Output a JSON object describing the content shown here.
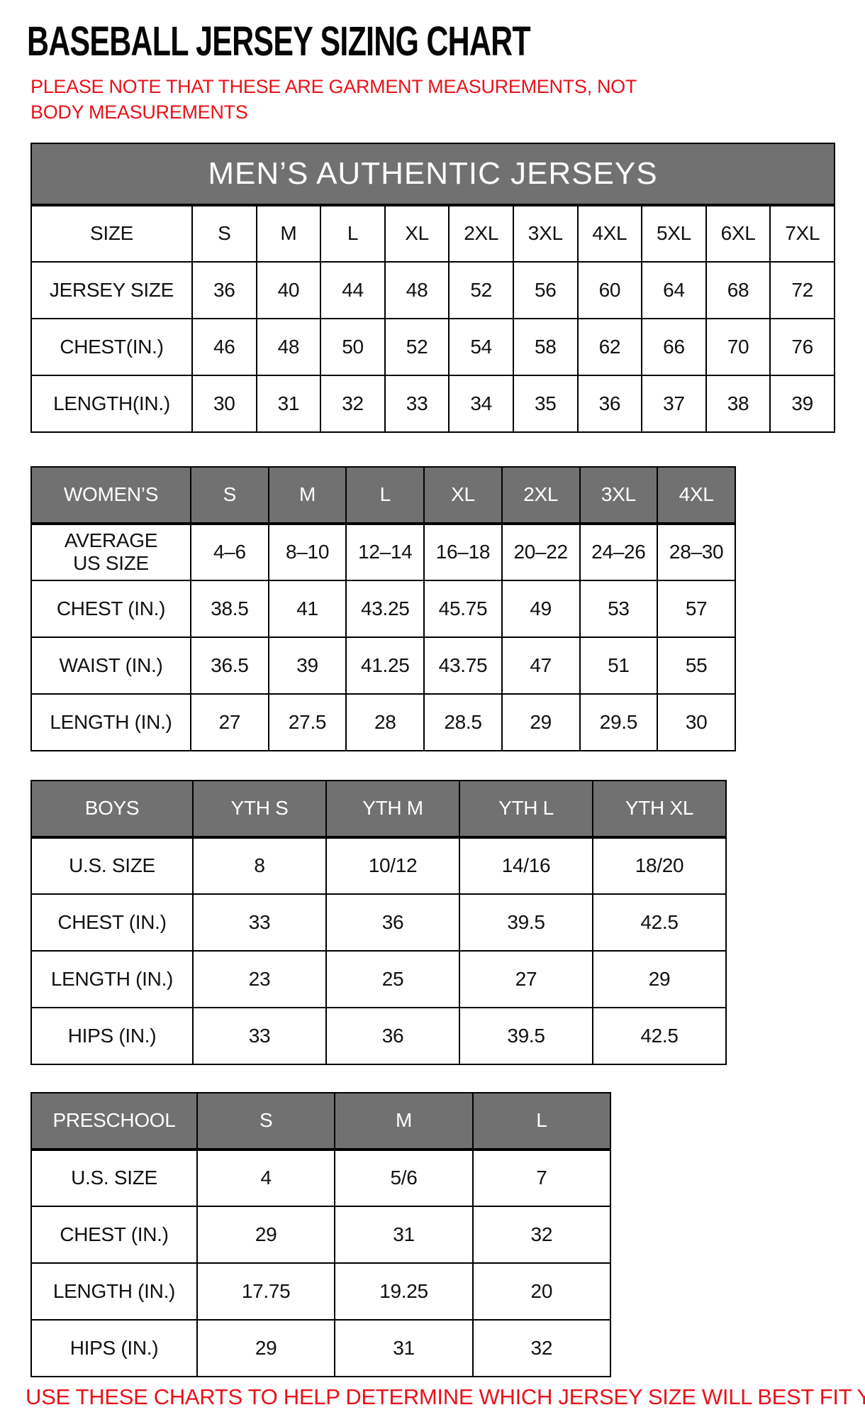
{
  "page": {
    "title": "BASEBALL JERSEY SIZING CHART",
    "note": "PLEASE NOTE THAT THESE ARE GARMENT MEASUREMENTS, NOT BODY MEASUREMENTS",
    "footer": "USE THESE CHARTS TO HELP DETERMINE WHICH JERSEY SIZE WILL BEST FIT YOU."
  },
  "colors": {
    "header_bg": "#717171",
    "header_text": "#ffffff",
    "accent_red": "#e8121a",
    "border": "#000000"
  },
  "chart_data": [
    {
      "type": "table",
      "name": "mens-authentic-jerseys",
      "merged_header": "MEN’S AUTHENTIC JERSEYS",
      "columns": 11,
      "rows": [
        [
          "SIZE",
          "S",
          "M",
          "L",
          "XL",
          "2XL",
          "3XL",
          "4XL",
          "5XL",
          "6XL",
          "7XL"
        ],
        [
          "JERSEY SIZE",
          "36",
          "40",
          "44",
          "48",
          "52",
          "56",
          "60",
          "64",
          "68",
          "72"
        ],
        [
          "CHEST(IN.)",
          "46",
          "48",
          "50",
          "52",
          "54",
          "58",
          "62",
          "66",
          "70",
          "76"
        ],
        [
          "LENGTH(IN.)",
          "30",
          "31",
          "32",
          "33",
          "34",
          "35",
          "36",
          "37",
          "38",
          "39"
        ]
      ]
    },
    {
      "type": "table",
      "name": "womens",
      "columns": 8,
      "header_row": [
        "WOMEN’S",
        "S",
        "M",
        "L",
        "XL",
        "2XL",
        "3XL",
        "4XL"
      ],
      "rows": [
        [
          "AVERAGE\nUS SIZE",
          "4–6",
          "8–10",
          "12–14",
          "16–18",
          "20–22",
          "24–26",
          "28–30"
        ],
        [
          "CHEST (IN.)",
          "38.5",
          "41",
          "43.25",
          "45.75",
          "49",
          "53",
          "57"
        ],
        [
          "WAIST (IN.)",
          "36.5",
          "39",
          "41.25",
          "43.75",
          "47",
          "51",
          "55"
        ],
        [
          "LENGTH (IN.)",
          "27",
          "27.5",
          "28",
          "28.5",
          "29",
          "29.5",
          "30"
        ]
      ]
    },
    {
      "type": "table",
      "name": "boys",
      "columns": 5,
      "header_row": [
        "BOYS",
        "YTH S",
        "YTH M",
        "YTH L",
        "YTH XL"
      ],
      "rows": [
        [
          "U.S. SIZE",
          "8",
          "10/12",
          "14/16",
          "18/20"
        ],
        [
          "CHEST (IN.)",
          "33",
          "36",
          "39.5",
          "42.5"
        ],
        [
          "LENGTH (IN.)",
          "23",
          "25",
          "27",
          "29"
        ],
        [
          "HIPS (IN.)",
          "33",
          "36",
          "39.5",
          "42.5"
        ]
      ]
    },
    {
      "type": "table",
      "name": "preschool",
      "columns": 4,
      "header_row": [
        "PRESCHOOL",
        "S",
        "M",
        "L"
      ],
      "rows": [
        [
          "U.S. SIZE",
          "4",
          "5/6",
          "7"
        ],
        [
          "CHEST (IN.)",
          "29",
          "31",
          "32"
        ],
        [
          "LENGTH (IN.)",
          "17.75",
          "19.25",
          "20"
        ],
        [
          "HIPS (IN.)",
          "29",
          "31",
          "32"
        ]
      ]
    }
  ]
}
